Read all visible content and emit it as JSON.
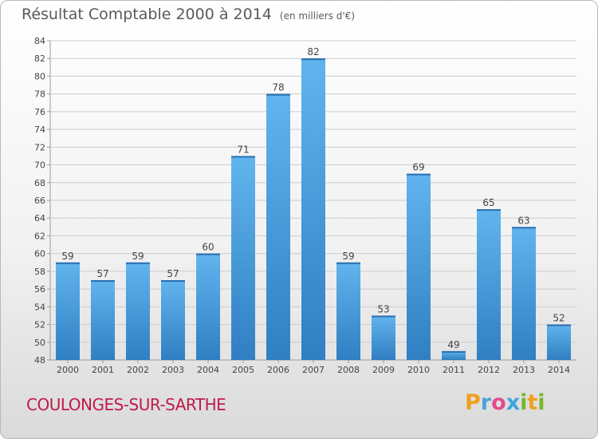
{
  "header": {
    "title": "Résultat Comptable 2000 à 2014",
    "unit": "(en milliers d'€)"
  },
  "footer": {
    "commune": "COULONGES-SUR-SARTHE",
    "logo_letters": [
      "P",
      "r",
      "o",
      "x",
      "i",
      "t",
      "i"
    ]
  },
  "colors": {
    "bar_top": "#62b4ee",
    "bar_bottom": "#2f7fc2",
    "commune": "#c01a4c"
  },
  "chart_data": {
    "type": "bar",
    "title": "Résultat Comptable 2000 à 2014",
    "xlabel": "",
    "ylabel": "",
    "categories": [
      "2000",
      "2001",
      "2002",
      "2003",
      "2004",
      "2005",
      "2006",
      "2007",
      "2008",
      "2009",
      "2010",
      "2011",
      "2012",
      "2013",
      "2014"
    ],
    "values": [
      59,
      57,
      59,
      57,
      60,
      71,
      78,
      82,
      59,
      53,
      69,
      49,
      65,
      63,
      52
    ],
    "ylim": [
      48,
      84
    ],
    "yticks": [
      48,
      50,
      52,
      54,
      56,
      58,
      60,
      62,
      64,
      66,
      68,
      70,
      72,
      74,
      76,
      78,
      80,
      82,
      84
    ],
    "grid": true,
    "legend": "none"
  }
}
